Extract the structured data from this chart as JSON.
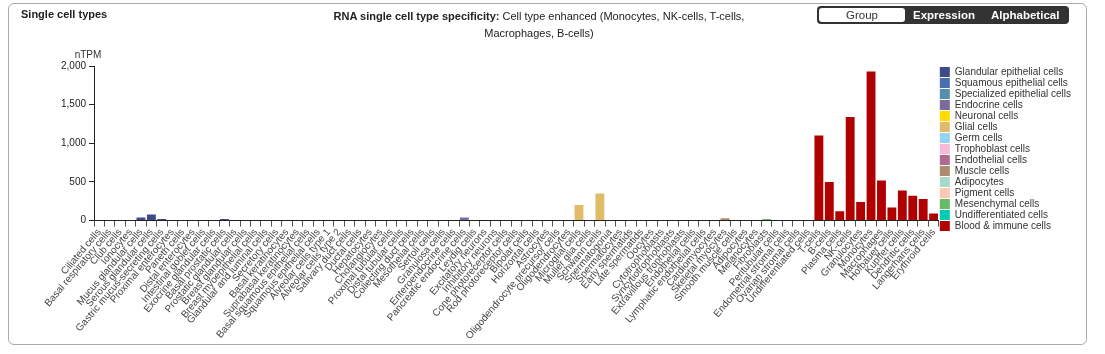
{
  "chart_data": {
    "type": "bar",
    "title": "RNA single cell type specificity:",
    "subtitle": "Cell type enhanced (Monocytes, NK-cells, T-cells, Macrophages, B-cells)",
    "ylabel": "nTPM",
    "annotations": [
      "Single cell types",
      "Group",
      "Expression",
      "Alphabetical"
    ],
    "categories": [
      "Ciliated cells",
      "Basal respiratory cells",
      "Club cells",
      "Ionocytes",
      "Mucus glandular cells",
      "Serous glandular cells",
      "Gastric mucus-secreting cells",
      "Proximal enterocytes",
      "Paneth cells",
      "Distal enterocytes",
      "Intestinal goblet cells",
      "Exocrine glandular cells",
      "Basal prostatic cells",
      "Prostatic glandular cells",
      "Breast glandular cells",
      "Breast myoepithelial cells",
      "Glandular and luminal cells",
      "Secretory cells",
      "Basal keratinocytes",
      "Suprabasal keratinocytes",
      "Basal squamous epithelial cells",
      "Squamous epithelial cells",
      "Alveolar cells type 1",
      "Alveolar cells type 2",
      "Salivary duct cells",
      "Ductal cells",
      "Hepatocytes",
      "Cholangiocytes",
      "Proximal tubular cells",
      "Distal tubular cells",
      "Collecting duct cells",
      "Mesothelial cells",
      "Sertoli cells",
      "Granulosa cells",
      "Enteroendocrine cells",
      "Pancreatic endocrine cells",
      "Leydig cells",
      "Excitatory neurons",
      "Inhibitory neurons",
      "Cone photoreceptor cells",
      "Rod photoreceptor cells",
      "Bipolar cells",
      "Horizontal cells",
      "Astrocytes",
      "Oligodendrocyte precursor cells",
      "Oligodendrocytes",
      "Microglial cells",
      "Muller glia cells",
      "Schwann cells",
      "Spermatogonia",
      "Spermatocytes",
      "Early spermatids",
      "Late spermatids",
      "Oocytes",
      "Cytotrophoblasts",
      "Syncytiotrophoblasts",
      "Extravillous trophoblasts",
      "Endothelial cells",
      "Lymphatic endothelial cells",
      "Cardiomyocytes",
      "Skeletal myocytes",
      "Smooth muscle cells",
      "Adipocytes",
      "Melanocytes",
      "Fibroblasts",
      "Peritubular cells",
      "Endometrial stromal cells",
      "Ovarian stromal cells",
      "Undifferentiated cells",
      "T-cells",
      "B-cells",
      "Plasma cells",
      "NK-cells",
      "Granulocytes",
      "Monocytes",
      "Macrophages",
      "Hofbauer cells",
      "Kupffer cells",
      "Dendritic cells",
      "Langerhans cells",
      "Erythroid cells"
    ],
    "stacked": true,
    "ylim": [
      0,
      2000
    ],
    "yticks": [
      0,
      {
        "value": 500,
        "label": "500"
      },
      {
        "value": 1000,
        "label": "1,000"
      },
      {
        "value": 1500,
        "label": "1,500"
      },
      {
        "value": 2000,
        "label": "2,000"
      }
    ],
    "legend": "right",
    "series": [
      {
        "name": "Glandular epithelial cells",
        "color": "#3f4a88",
        "values": [
          0,
          0,
          0,
          0,
          40,
          80,
          20,
          0,
          0,
          0,
          0,
          0,
          20,
          0,
          0,
          0,
          0,
          0,
          null,
          null,
          null,
          null,
          null,
          null,
          null,
          null,
          null,
          null,
          null,
          null,
          null,
          null,
          null,
          null,
          null,
          null,
          null,
          null,
          null,
          null,
          null,
          null,
          null,
          null,
          null,
          null,
          null,
          null,
          null,
          null,
          null,
          null,
          null,
          null,
          null,
          null,
          null,
          null,
          null,
          null,
          null,
          null,
          null,
          null,
          null,
          null,
          null,
          null,
          null,
          null,
          null,
          null,
          null,
          null,
          null,
          null,
          null,
          null,
          null,
          null,
          null
        ]
      },
      {
        "name": "Squamous epithelial cells",
        "color": "#4a6db4",
        "values": [
          null,
          null,
          null,
          null,
          null,
          null,
          null,
          null,
          null,
          null,
          null,
          null,
          null,
          null,
          null,
          null,
          null,
          null,
          0,
          0,
          0,
          0,
          null,
          null,
          null,
          null,
          null,
          null,
          null,
          null,
          null,
          null,
          null,
          null,
          null,
          null,
          null,
          null,
          null,
          null,
          null,
          null,
          null,
          null,
          null,
          null,
          null,
          null,
          null,
          null,
          null,
          null,
          null,
          null,
          null,
          null,
          null,
          null,
          null,
          null,
          null,
          null,
          null,
          null,
          null,
          null,
          null,
          null,
          null,
          null,
          null,
          null,
          null,
          null,
          null,
          null,
          null,
          null,
          null,
          null,
          null
        ]
      },
      {
        "name": "Specialized epithelial cells",
        "color": "#538fae",
        "values": [
          null,
          null,
          null,
          null,
          null,
          null,
          null,
          null,
          null,
          null,
          null,
          null,
          null,
          null,
          null,
          null,
          null,
          null,
          null,
          null,
          null,
          null,
          0,
          0,
          0,
          0,
          0,
          0,
          0,
          0,
          0,
          0,
          0,
          0,
          null,
          null,
          null,
          null,
          null,
          null,
          null,
          null,
          null,
          null,
          null,
          null,
          null,
          null,
          null,
          null,
          null,
          null,
          null,
          null,
          null,
          null,
          null,
          null,
          null,
          null,
          null,
          null,
          null,
          null,
          null,
          null,
          null,
          null,
          null,
          null,
          null,
          null,
          null,
          null,
          null,
          null,
          null,
          null,
          null,
          null,
          null
        ]
      },
      {
        "name": "Endocrine cells",
        "color": "#7b6a9c",
        "values": [
          null,
          null,
          null,
          null,
          null,
          null,
          null,
          null,
          null,
          null,
          null,
          null,
          null,
          null,
          null,
          null,
          null,
          null,
          null,
          null,
          null,
          null,
          null,
          null,
          null,
          null,
          null,
          null,
          null,
          null,
          null,
          null,
          null,
          null,
          0,
          40,
          0,
          null,
          null,
          null,
          null,
          null,
          null,
          null,
          null,
          null,
          null,
          null,
          null,
          null,
          null,
          null,
          null,
          null,
          null,
          null,
          null,
          null,
          null,
          null,
          null,
          null,
          null,
          null,
          null,
          null,
          null,
          null,
          null,
          null,
          null,
          null,
          null,
          null,
          null,
          null,
          null,
          null,
          null,
          null,
          null
        ]
      },
      {
        "name": "Neuronal cells",
        "color": "#ffdd00",
        "values": [
          null,
          null,
          null,
          null,
          null,
          null,
          null,
          null,
          null,
          null,
          null,
          null,
          null,
          null,
          null,
          null,
          null,
          null,
          null,
          null,
          null,
          null,
          null,
          null,
          null,
          null,
          null,
          null,
          null,
          null,
          null,
          null,
          null,
          null,
          null,
          null,
          null,
          0,
          0,
          0,
          0,
          0,
          0,
          null,
          null,
          null,
          null,
          null,
          null,
          null,
          null,
          null,
          null,
          null,
          null,
          null,
          null,
          null,
          null,
          null,
          null,
          null,
          null,
          null,
          null,
          null,
          null,
          null,
          null,
          null,
          null,
          null,
          null,
          null,
          null,
          null,
          null,
          null,
          null,
          null,
          null
        ]
      },
      {
        "name": "Glial cells",
        "color": "#e0bc69",
        "values": [
          null,
          null,
          null,
          null,
          null,
          null,
          null,
          null,
          null,
          null,
          null,
          null,
          null,
          null,
          null,
          null,
          null,
          null,
          null,
          null,
          null,
          null,
          null,
          null,
          null,
          null,
          null,
          null,
          null,
          null,
          null,
          null,
          null,
          null,
          null,
          null,
          null,
          null,
          null,
          null,
          null,
          null,
          null,
          0,
          0,
          0,
          200,
          0,
          350,
          null,
          null,
          null,
          null,
          null,
          null,
          null,
          null,
          null,
          null,
          null,
          null,
          null,
          null,
          null,
          null,
          null,
          null,
          null,
          null,
          null,
          null,
          null,
          null,
          null,
          null,
          null,
          null,
          null,
          null,
          null,
          null
        ]
      },
      {
        "name": "Germ cells",
        "color": "#95d3f3",
        "values": [
          null,
          null,
          null,
          null,
          null,
          null,
          null,
          null,
          null,
          null,
          null,
          null,
          null,
          null,
          null,
          null,
          null,
          null,
          null,
          null,
          null,
          null,
          null,
          null,
          null,
          null,
          null,
          null,
          null,
          null,
          null,
          null,
          null,
          null,
          null,
          null,
          null,
          null,
          null,
          null,
          null,
          null,
          null,
          null,
          null,
          null,
          null,
          null,
          null,
          0,
          0,
          0,
          0,
          0,
          null,
          null,
          null,
          null,
          null,
          null,
          null,
          null,
          null,
          null,
          null,
          null,
          null,
          null,
          null,
          null,
          null,
          null,
          null,
          null,
          null,
          null,
          null,
          null,
          null,
          null,
          null
        ]
      },
      {
        "name": "Trophoblast cells",
        "color": "#f5bad6",
        "values": [
          null,
          null,
          null,
          null,
          null,
          null,
          null,
          null,
          null,
          null,
          null,
          null,
          null,
          null,
          null,
          null,
          null,
          null,
          null,
          null,
          null,
          null,
          null,
          null,
          null,
          null,
          null,
          null,
          null,
          null,
          null,
          null,
          null,
          null,
          null,
          null,
          null,
          null,
          null,
          null,
          null,
          null,
          null,
          null,
          null,
          null,
          null,
          null,
          null,
          null,
          null,
          null,
          null,
          null,
          0,
          0,
          0,
          null,
          null,
          null,
          null,
          null,
          null,
          null,
          null,
          null,
          null,
          null,
          null,
          null,
          null,
          null,
          null,
          null,
          null,
          null,
          null,
          null,
          null,
          null,
          null
        ]
      },
      {
        "name": "Endothelial cells",
        "color": "#b06a92",
        "values": [
          null,
          null,
          null,
          null,
          null,
          null,
          null,
          null,
          null,
          null,
          null,
          null,
          null,
          null,
          null,
          null,
          null,
          null,
          null,
          null,
          null,
          null,
          null,
          null,
          null,
          null,
          null,
          null,
          null,
          null,
          null,
          null,
          null,
          null,
          null,
          null,
          null,
          null,
          null,
          null,
          null,
          null,
          null,
          null,
          null,
          null,
          null,
          null,
          null,
          null,
          null,
          null,
          null,
          null,
          null,
          null,
          null,
          0,
          0,
          null,
          null,
          null,
          null,
          null,
          null,
          null,
          null,
          null,
          null,
          null,
          null,
          null,
          null,
          null,
          null,
          null,
          null,
          null,
          null,
          null,
          null
        ]
      },
      {
        "name": "Muscle cells",
        "color": "#ae8a70",
        "values": [
          null,
          null,
          null,
          null,
          null,
          null,
          null,
          null,
          null,
          null,
          null,
          null,
          null,
          null,
          null,
          null,
          null,
          null,
          null,
          null,
          null,
          null,
          null,
          null,
          null,
          null,
          null,
          null,
          null,
          null,
          null,
          null,
          null,
          null,
          null,
          null,
          null,
          null,
          null,
          null,
          null,
          null,
          null,
          null,
          null,
          null,
          null,
          null,
          null,
          null,
          null,
          null,
          null,
          null,
          null,
          null,
          null,
          null,
          null,
          0,
          30,
          0,
          null,
          null,
          null,
          null,
          null,
          null,
          null,
          null,
          null,
          null,
          null,
          null,
          null,
          null,
          null,
          null,
          null,
          null,
          null
        ]
      },
      {
        "name": "Adipocytes",
        "color": "#a8dacb",
        "values": [
          null,
          null,
          null,
          null,
          null,
          null,
          null,
          null,
          null,
          null,
          null,
          null,
          null,
          null,
          null,
          null,
          null,
          null,
          null,
          null,
          null,
          null,
          null,
          null,
          null,
          null,
          null,
          null,
          null,
          null,
          null,
          null,
          null,
          null,
          null,
          null,
          null,
          null,
          null,
          null,
          null,
          null,
          null,
          null,
          null,
          null,
          null,
          null,
          null,
          null,
          null,
          null,
          null,
          null,
          null,
          null,
          null,
          null,
          null,
          null,
          null,
          null,
          0,
          null,
          null,
          null,
          null,
          null,
          null,
          null,
          null,
          null,
          null,
          null,
          null,
          null,
          null,
          null,
          null,
          null,
          null
        ]
      },
      {
        "name": "Pigment cells",
        "color": "#fbc8b2",
        "values": [
          null,
          null,
          null,
          null,
          null,
          null,
          null,
          null,
          null,
          null,
          null,
          null,
          null,
          null,
          null,
          null,
          null,
          null,
          null,
          null,
          null,
          null,
          null,
          null,
          null,
          null,
          null,
          null,
          null,
          null,
          null,
          null,
          null,
          null,
          null,
          null,
          null,
          null,
          null,
          null,
          null,
          null,
          null,
          null,
          null,
          null,
          null,
          null,
          null,
          null,
          null,
          null,
          null,
          null,
          null,
          null,
          null,
          null,
          null,
          null,
          null,
          null,
          null,
          0,
          null,
          null,
          null,
          null,
          null,
          null,
          null,
          null,
          null,
          null,
          null,
          null,
          null,
          null,
          null,
          null,
          null
        ]
      },
      {
        "name": "Mesenchymal cells",
        "color": "#66bb66",
        "values": [
          null,
          null,
          null,
          null,
          null,
          null,
          null,
          null,
          null,
          null,
          null,
          null,
          null,
          null,
          null,
          null,
          null,
          null,
          null,
          null,
          null,
          null,
          null,
          null,
          null,
          null,
          null,
          null,
          null,
          null,
          null,
          null,
          null,
          null,
          null,
          null,
          null,
          null,
          null,
          null,
          null,
          null,
          null,
          null,
          null,
          null,
          null,
          null,
          null,
          null,
          null,
          null,
          null,
          null,
          null,
          null,
          null,
          null,
          null,
          null,
          null,
          null,
          null,
          null,
          20,
          0,
          0,
          0,
          null,
          null,
          null,
          null,
          null,
          null,
          null,
          null,
          null,
          null,
          null,
          null,
          null
        ]
      },
      {
        "name": "Undifferentiated cells",
        "color": "#00ccb2",
        "values": [
          null,
          null,
          null,
          null,
          null,
          null,
          null,
          null,
          null,
          null,
          null,
          null,
          null,
          null,
          null,
          null,
          null,
          null,
          null,
          null,
          null,
          null,
          null,
          null,
          null,
          null,
          null,
          null,
          null,
          null,
          null,
          null,
          null,
          null,
          null,
          null,
          null,
          null,
          null,
          null,
          null,
          null,
          null,
          null,
          null,
          null,
          null,
          null,
          null,
          null,
          null,
          null,
          null,
          null,
          null,
          null,
          null,
          null,
          null,
          null,
          null,
          null,
          null,
          null,
          null,
          null,
          null,
          null,
          0,
          null,
          null,
          null,
          null,
          null,
          null,
          null,
          null,
          null,
          null,
          null,
          null
        ]
      },
      {
        "name": "Blood & immune cells",
        "color": "#b00000",
        "values": [
          null,
          null,
          null,
          null,
          null,
          null,
          null,
          null,
          null,
          null,
          null,
          null,
          null,
          null,
          null,
          null,
          null,
          null,
          null,
          null,
          null,
          null,
          null,
          null,
          null,
          null,
          null,
          null,
          null,
          null,
          null,
          null,
          null,
          null,
          null,
          null,
          null,
          null,
          null,
          null,
          null,
          null,
          null,
          null,
          null,
          null,
          null,
          null,
          null,
          null,
          null,
          null,
          null,
          null,
          null,
          null,
          null,
          null,
          null,
          null,
          null,
          null,
          null,
          null,
          null,
          null,
          null,
          null,
          null,
          1100,
          500,
          120,
          1340,
          240,
          1930,
          520,
          170,
          390,
          320,
          280,
          90
        ]
      }
    ]
  }
}
